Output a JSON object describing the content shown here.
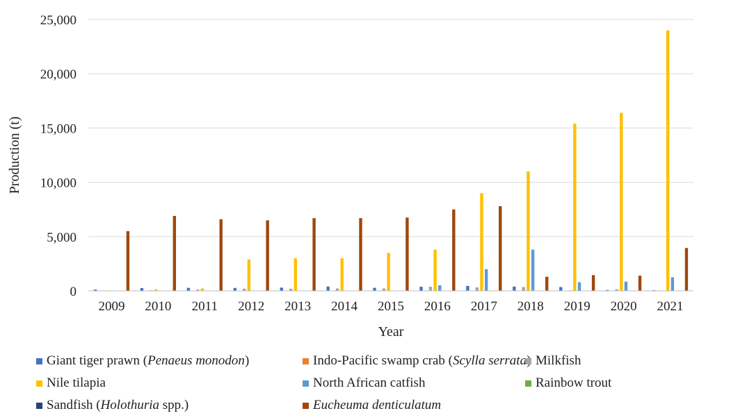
{
  "chart_data": {
    "type": "bar",
    "xlabel": "Year",
    "ylabel": "Production (t)",
    "ylim": [
      0,
      25000
    ],
    "yticks": [
      0,
      5000,
      10000,
      15000,
      20000,
      25000
    ],
    "ytick_labels": [
      "0",
      "5,000",
      "10,000",
      "15,000",
      "20,000",
      "25,000"
    ],
    "grid": true,
    "legend_position": "bottom",
    "categories": [
      "2009",
      "2010",
      "2011",
      "2012",
      "2013",
      "2014",
      "2015",
      "2016",
      "2017",
      "2018",
      "2019",
      "2020",
      "2021"
    ],
    "series": [
      {
        "name": "Giant tiger prawn (",
        "name_italic": "Penaeus monodon",
        "name_suffix": ")",
        "color": "#4472C4",
        "values": [
          120,
          260,
          280,
          270,
          300,
          400,
          280,
          380,
          460,
          400,
          350,
          80,
          60
        ]
      },
      {
        "name": "Indo-Pacific swamp crab (",
        "name_italic": "Scylla serrata",
        "name_suffix": ")",
        "color": "#ED7D31",
        "values": [
          10,
          10,
          10,
          10,
          10,
          10,
          10,
          10,
          10,
          10,
          10,
          10,
          10
        ]
      },
      {
        "name": "Milkfish",
        "color": "#A5A5A5",
        "values": [
          30,
          60,
          120,
          200,
          200,
          220,
          220,
          380,
          320,
          350,
          50,
          150,
          40
        ]
      },
      {
        "name": "Nile tilapia",
        "color": "#FFC000",
        "values": [
          50,
          150,
          220,
          2900,
          3000,
          3000,
          3500,
          3800,
          9000,
          11000,
          15400,
          16400,
          24000
        ]
      },
      {
        "name": "North African catfish",
        "color": "#5B9BD5",
        "values": [
          0,
          0,
          0,
          0,
          0,
          0,
          0,
          520,
          2000,
          3800,
          800,
          850,
          1250
        ]
      },
      {
        "name": "Rainbow trout",
        "color": "#70AD47",
        "values": [
          0,
          0,
          0,
          0,
          0,
          0,
          0,
          0,
          0,
          0,
          0,
          0,
          0
        ]
      },
      {
        "name": "Sandfish (",
        "name_italic": "Holothuria",
        "name_suffix": " spp.)",
        "color": "#264478",
        "values": [
          0,
          0,
          0,
          0,
          0,
          0,
          0,
          0,
          0,
          0,
          0,
          0,
          0
        ]
      },
      {
        "name": "",
        "name_italic": "Eucheuma denticulatum",
        "name_suffix": "",
        "color": "#9E480E",
        "values": [
          5500,
          6900,
          6600,
          6500,
          6700,
          6700,
          6750,
          7500,
          7800,
          1300,
          1450,
          1400,
          3950
        ]
      }
    ]
  }
}
